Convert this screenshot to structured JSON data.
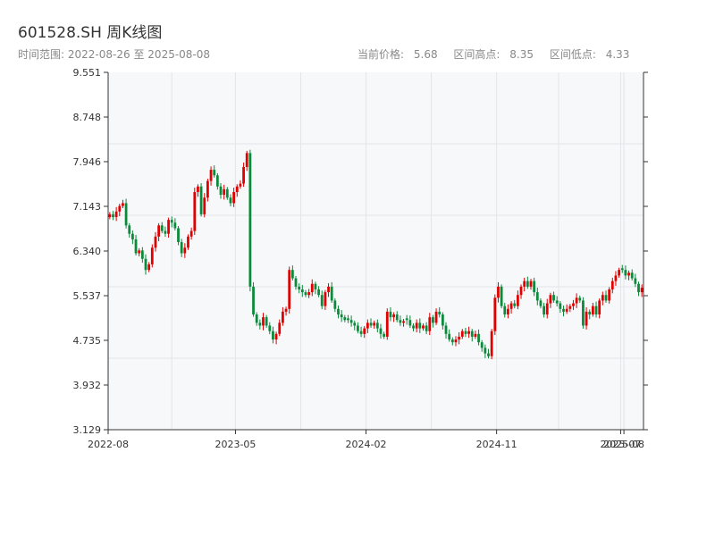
{
  "header": {
    "title": "601528.SH 周K线图",
    "date_range_label": "时间范围:",
    "start_date": "2022-08-26",
    "range_sep": "至",
    "end_date": "2025-08-08",
    "current_price_label": "当前价格:",
    "current_price": "5.68",
    "high_label": "区间高点:",
    "high": "8.35",
    "low_label": "区间低点:",
    "low": "4.33"
  },
  "colors": {
    "up": "#e00000",
    "down": "#0a8a3a",
    "plot_bg": "#f7f8fa",
    "grid": "#e2e5ea",
    "axis": "#333333"
  },
  "chart_data": {
    "type": "candlestick",
    "title": "601528.SH 周K线图",
    "ylim": [
      3.129,
      9.551
    ],
    "yticks": [
      "3.129",
      "3.932",
      "4.735",
      "5.537",
      "6.340",
      "7.143",
      "7.946",
      "8.748",
      "9.551"
    ],
    "xticks": [
      {
        "label": "2022-08",
        "index": 0
      },
      {
        "label": "2023-05",
        "index": 39
      },
      {
        "label": "2024-02",
        "index": 79
      },
      {
        "label": "2024-11",
        "index": 119
      },
      {
        "label": "2025-07",
        "index": 157
      },
      {
        "label": "2025-08",
        "index": 158
      }
    ],
    "grid": true,
    "closes": [
      7.0,
      6.95,
      7.05,
      7.15,
      7.2,
      6.8,
      6.65,
      6.55,
      6.3,
      6.35,
      6.2,
      6.0,
      6.1,
      6.4,
      6.6,
      6.8,
      6.7,
      6.65,
      6.9,
      6.85,
      6.75,
      6.5,
      6.3,
      6.4,
      6.6,
      6.7,
      7.4,
      7.5,
      7.0,
      7.3,
      7.6,
      7.8,
      7.7,
      7.5,
      7.35,
      7.45,
      7.3,
      7.2,
      7.4,
      7.5,
      7.55,
      7.85,
      8.1,
      5.7,
      5.2,
      5.05,
      5.0,
      5.15,
      5.0,
      4.9,
      4.75,
      4.85,
      5.05,
      5.25,
      5.3,
      6.0,
      5.85,
      5.7,
      5.65,
      5.6,
      5.55,
      5.6,
      5.75,
      5.65,
      5.55,
      5.35,
      5.6,
      5.7,
      5.45,
      5.3,
      5.2,
      5.15,
      5.1,
      5.1,
      5.05,
      5.0,
      4.9,
      4.85,
      4.95,
      5.05,
      5.0,
      5.05,
      4.95,
      4.85,
      4.8,
      5.25,
      5.15,
      5.2,
      5.1,
      5.05,
      5.08,
      5.1,
      5.0,
      4.95,
      5.05,
      4.95,
      5.0,
      4.9,
      5.15,
      5.05,
      5.25,
      5.2,
      5.0,
      4.85,
      4.75,
      4.7,
      4.75,
      4.8,
      4.9,
      4.85,
      4.9,
      4.8,
      4.85,
      4.7,
      4.6,
      4.5,
      4.45,
      4.9,
      5.5,
      5.7,
      5.35,
      5.2,
      5.3,
      5.4,
      5.35,
      5.55,
      5.7,
      5.8,
      5.7,
      5.8,
      5.6,
      5.45,
      5.35,
      5.2,
      5.4,
      5.55,
      5.45,
      5.4,
      5.3,
      5.25,
      5.3,
      5.35,
      5.4,
      5.5,
      5.45,
      5.0,
      5.25,
      5.2,
      5.35,
      5.2,
      5.45,
      5.55,
      5.45,
      5.65,
      5.8,
      5.9,
      6.0,
      6.0,
      5.9,
      5.95,
      5.85,
      5.75,
      5.6,
      5.68
    ]
  }
}
